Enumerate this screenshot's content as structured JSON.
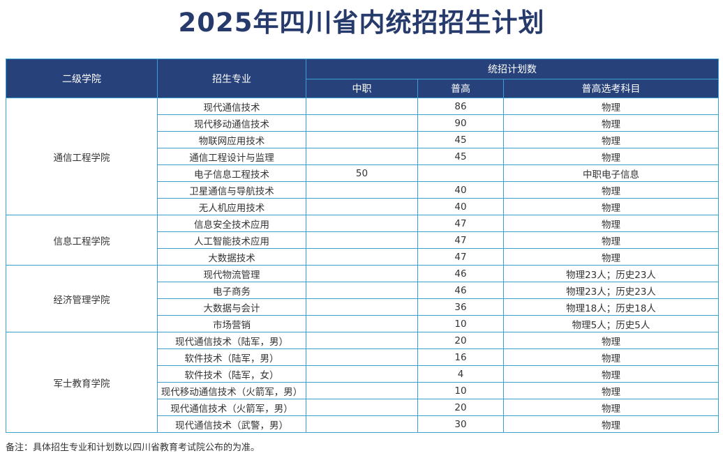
{
  "title": "2025年四川省内统招招生计划",
  "colors": {
    "title": "#263a6b",
    "header_bg": "#27417a",
    "header_text": "#ffffff",
    "border": "#3b9fd3"
  },
  "headers": {
    "college": "二级学院",
    "major": "招生专业",
    "plan": "统招计划数",
    "zhongzhi": "中职",
    "putong": "普高",
    "subjects": "普高选考科目"
  },
  "groups": [
    {
      "college": "通信工程学院",
      "rows": [
        {
          "major": "现代通信技术",
          "zhongzhi": "",
          "putong": "86",
          "subjects": "物理"
        },
        {
          "major": "现代移动通信技术",
          "zhongzhi": "",
          "putong": "90",
          "subjects": "物理"
        },
        {
          "major": "物联网应用技术",
          "zhongzhi": "",
          "putong": "45",
          "subjects": "物理"
        },
        {
          "major": "通信工程设计与监理",
          "zhongzhi": "",
          "putong": "45",
          "subjects": "物理"
        },
        {
          "major": "电子信息工程技术",
          "zhongzhi": "50",
          "putong": "",
          "subjects": "中职电子信息"
        },
        {
          "major": "卫星通信与导航技术",
          "zhongzhi": "",
          "putong": "40",
          "subjects": "物理"
        },
        {
          "major": "无人机应用技术",
          "zhongzhi": "",
          "putong": "40",
          "subjects": "物理"
        }
      ]
    },
    {
      "college": "信息工程学院",
      "rows": [
        {
          "major": "信息安全技术应用",
          "zhongzhi": "",
          "putong": "47",
          "subjects": "物理"
        },
        {
          "major": "人工智能技术应用",
          "zhongzhi": "",
          "putong": "47",
          "subjects": "物理"
        },
        {
          "major": "大数据技术",
          "zhongzhi": "",
          "putong": "47",
          "subjects": "物理"
        }
      ]
    },
    {
      "college": "经济管理学院",
      "rows": [
        {
          "major": "现代物流管理",
          "zhongzhi": "",
          "putong": "46",
          "subjects": "物理23人；历史23人"
        },
        {
          "major": "电子商务",
          "zhongzhi": "",
          "putong": "46",
          "subjects": "物理23人；历史23人"
        },
        {
          "major": "大数据与会计",
          "zhongzhi": "",
          "putong": "36",
          "subjects": "物理18人；历史18人"
        },
        {
          "major": "市场营销",
          "zhongzhi": "",
          "putong": "10",
          "subjects": "物理5人；历史5人"
        }
      ]
    },
    {
      "college": "军士教育学院",
      "rows": [
        {
          "major": "现代通信技术（陆军，男）",
          "zhongzhi": "",
          "putong": "20",
          "subjects": "物理"
        },
        {
          "major": "软件技术（陆军，男）",
          "zhongzhi": "",
          "putong": "16",
          "subjects": "物理"
        },
        {
          "major": "软件技术（陆军，女）",
          "zhongzhi": "",
          "putong": "4",
          "subjects": "物理"
        },
        {
          "major": "现代移动通信技术（火箭军，男）",
          "zhongzhi": "",
          "putong": "10",
          "subjects": "物理"
        },
        {
          "major": "现代通信技术（火箭军，男）",
          "zhongzhi": "",
          "putong": "20",
          "subjects": "物理"
        },
        {
          "major": "现代通信技术（武警，男）",
          "zhongzhi": "",
          "putong": "30",
          "subjects": "物理"
        }
      ]
    }
  ],
  "note": "备注：具体招生专业和计划数以四川省教育考试院公布的为准。"
}
